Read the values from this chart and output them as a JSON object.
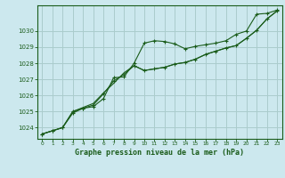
{
  "x": [
    0,
    1,
    2,
    3,
    4,
    5,
    6,
    7,
    8,
    9,
    10,
    11,
    12,
    13,
    14,
    15,
    16,
    17,
    18,
    19,
    20,
    21,
    22,
    23
  ],
  "line1": [
    1023.6,
    1023.8,
    1024.0,
    1024.9,
    1025.2,
    1025.3,
    1025.8,
    1027.1,
    1027.15,
    1028.0,
    1029.25,
    1029.4,
    1029.35,
    1029.2,
    1028.9,
    1029.05,
    1029.15,
    1029.25,
    1029.4,
    1029.8,
    1030.0,
    1031.05,
    1031.1,
    1031.3
  ],
  "line2": [
    1023.6,
    1023.8,
    1024.0,
    1025.0,
    1025.2,
    1025.4,
    1026.1,
    1026.9,
    1027.3,
    1027.85,
    1027.55,
    1027.65,
    1027.75,
    1027.95,
    1028.05,
    1028.25,
    1028.55,
    1028.75,
    1028.95,
    1029.1,
    1029.55,
    1030.05,
    1030.75,
    1031.25
  ],
  "line3": [
    1023.6,
    1023.8,
    1024.0,
    1025.0,
    1025.25,
    1025.5,
    1026.15,
    1026.75,
    1027.4,
    1027.85,
    1027.55,
    1027.65,
    1027.75,
    1027.95,
    1028.05,
    1028.25,
    1028.55,
    1028.75,
    1028.95,
    1029.1,
    1029.55,
    1030.05,
    1030.75,
    1031.25
  ],
  "bg_color": "#cce8ee",
  "grid_color": "#aacccc",
  "line_color": "#1a5c1a",
  "xlabel": "Graphe pression niveau de la mer (hPa)",
  "ylim": [
    1023.3,
    1031.6
  ],
  "xlim": [
    -0.5,
    23.5
  ],
  "yticks": [
    1024,
    1025,
    1026,
    1027,
    1028,
    1029,
    1030
  ],
  "xticks": [
    0,
    1,
    2,
    3,
    4,
    5,
    6,
    7,
    8,
    9,
    10,
    11,
    12,
    13,
    14,
    15,
    16,
    17,
    18,
    19,
    20,
    21,
    22,
    23
  ]
}
